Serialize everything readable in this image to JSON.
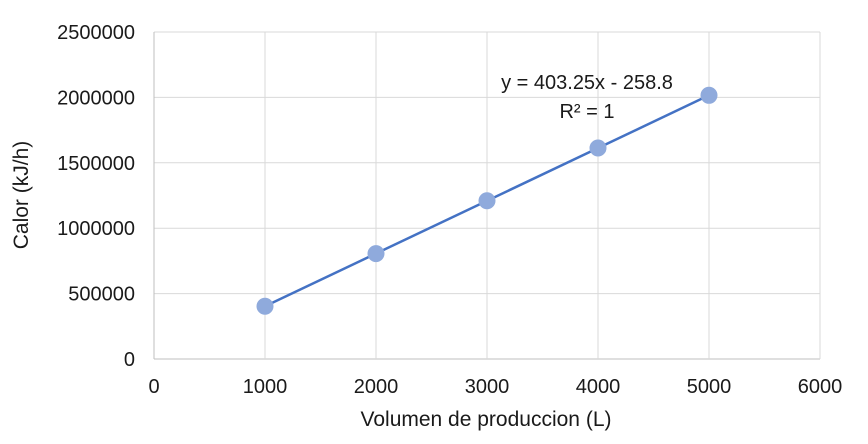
{
  "chart_data": {
    "type": "scatter",
    "title": "",
    "xlabel": "Volumen de produccion (L)",
    "ylabel": "Calor (kJ/h)",
    "xlim": [
      0,
      6000
    ],
    "ylim": [
      0,
      2500000
    ],
    "x_ticks": [
      "0",
      "1000",
      "2000",
      "3000",
      "4000",
      "5000",
      "6000"
    ],
    "y_ticks": [
      "0",
      "500000",
      "1000000",
      "1500000",
      "2000000",
      "2500000"
    ],
    "grid": "both",
    "legend": "none",
    "series": [
      {
        "x": [
          1000,
          2000,
          3000,
          4000,
          5000
        ],
        "y": [
          403000,
          806000,
          1210000,
          1613000,
          2016000
        ],
        "color": "#8FAADC"
      }
    ],
    "trendline": {
      "type": "linear",
      "slope": 403.25,
      "intercept": -258.8,
      "x_range": [
        1000,
        5000
      ],
      "color": "#4472C4"
    },
    "annotations": {
      "equation": "y = 403.25x - 258.8",
      "r2": "R² = 1"
    }
  }
}
